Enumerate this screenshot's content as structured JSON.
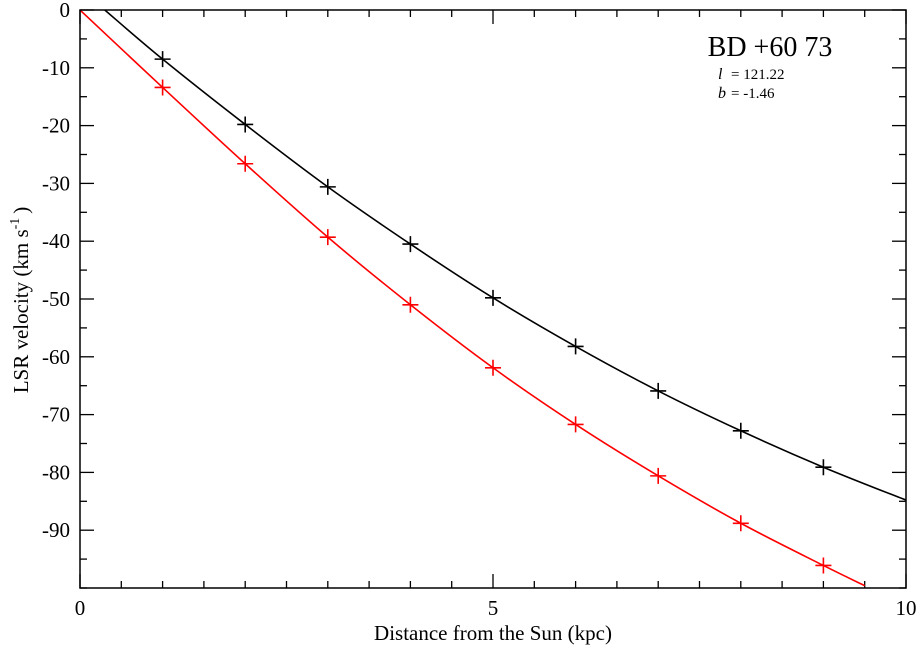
{
  "chart_data": {
    "type": "line",
    "title": "BD +60 73",
    "annotations": [
      {
        "symbol": "l",
        "text": "= 121.22"
      },
      {
        "symbol": "b",
        "text": "= -1.46"
      }
    ],
    "xlabel": "Distance from the Sun (kpc)",
    "ylabel_main": "LSR velocity (km s",
    "ylabel_sup": "-1",
    "ylabel_close": ")",
    "xlim": [
      0,
      10
    ],
    "ylim": [
      -100,
      0
    ],
    "x_major_ticks": [
      0,
      5,
      10
    ],
    "x_tick_labels": [
      "0",
      "5",
      "10"
    ],
    "x_minor_step": 0.5,
    "y_major_ticks": [
      0,
      -10,
      -20,
      -30,
      -40,
      -50,
      -60,
      -70,
      -80,
      -90
    ],
    "y_tick_labels": [
      "0",
      "-10",
      "-20",
      "-30",
      "-40",
      "-50",
      "-60",
      "-70",
      "-80",
      "-90"
    ],
    "y_minor_step": 5,
    "grid": false,
    "series": [
      {
        "color": "#000000",
        "marker": "plus",
        "points_x": [
          1,
          2,
          3,
          4,
          5,
          6,
          7,
          8,
          9
        ],
        "points_y": [
          -8.5,
          -19.8,
          -30.6,
          -40.5,
          -49.8,
          -58.2,
          -65.9,
          -72.8,
          -79.1
        ],
        "curve_x": [
          0.3,
          1,
          2,
          3,
          4,
          5,
          6,
          7,
          8,
          9,
          10
        ],
        "curve_y": [
          0,
          -8.5,
          -19.8,
          -30.6,
          -40.5,
          -49.8,
          -58.2,
          -65.9,
          -72.8,
          -79.1,
          -84.8
        ]
      },
      {
        "color": "#ff0000",
        "marker": "plus",
        "points_x": [
          1,
          2,
          3,
          4,
          5,
          6,
          7,
          8,
          9
        ],
        "points_y": [
          -13.4,
          -26.6,
          -39.3,
          -51.0,
          -61.9,
          -71.7,
          -80.6,
          -88.8,
          -96.1
        ],
        "curve_x": [
          0,
          1,
          2,
          3,
          4,
          5,
          6,
          7,
          8,
          9,
          9.5
        ],
        "curve_y": [
          0,
          -13.4,
          -26.6,
          -39.3,
          -51.0,
          -61.9,
          -71.7,
          -80.6,
          -88.8,
          -96.1,
          -99.6
        ]
      }
    ]
  }
}
